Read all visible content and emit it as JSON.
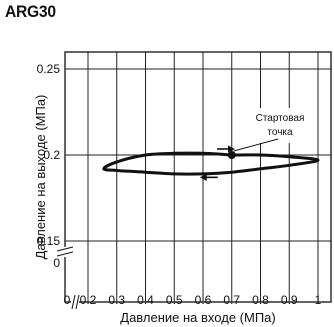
{
  "header": {
    "title": "ARG30"
  },
  "chart_data": {
    "type": "line",
    "title": "ARG30",
    "xlabel": "Давление на входе (МПа)",
    "ylabel": "Давление на выходе (МПа)",
    "x_ticks": [
      "0",
      "0.2",
      "0.3",
      "0.4",
      "0.5",
      "0.6",
      "0.7",
      "0.8",
      "0.9",
      "1"
    ],
    "y_ticks": [
      "0",
      "0.15",
      "0.2",
      "0.25"
    ],
    "xlim": [
      0.15,
      1.0
    ],
    "ylim": [
      0.145,
      0.26
    ],
    "axis_breaks": [
      "x",
      "y"
    ],
    "grid": {
      "vertical": true,
      "horizontal": true
    },
    "series": [
      {
        "x": [
          0.7,
          0.8,
          0.9,
          1.0,
          0.9,
          0.8,
          0.7,
          0.6,
          0.5,
          0.4,
          0.3,
          0.255,
          0.3,
          0.4,
          0.5,
          0.6,
          0.7
        ],
        "y": [
          0.2,
          0.2,
          0.199,
          0.197,
          0.194,
          0.192,
          0.19,
          0.189,
          0.189,
          0.19,
          0.191,
          0.192,
          0.196,
          0.2,
          0.201,
          0.201,
          0.2
        ]
      }
    ],
    "annotations": [
      {
        "text_lines": [
          "Стартовая",
          "точка"
        ],
        "x": 0.7,
        "y": 0.2
      }
    ],
    "arrows": [
      {
        "at": [
          0.68,
          0.2035
        ],
        "direction": "right"
      },
      {
        "at": [
          0.62,
          0.187
        ],
        "direction": "left"
      }
    ]
  }
}
